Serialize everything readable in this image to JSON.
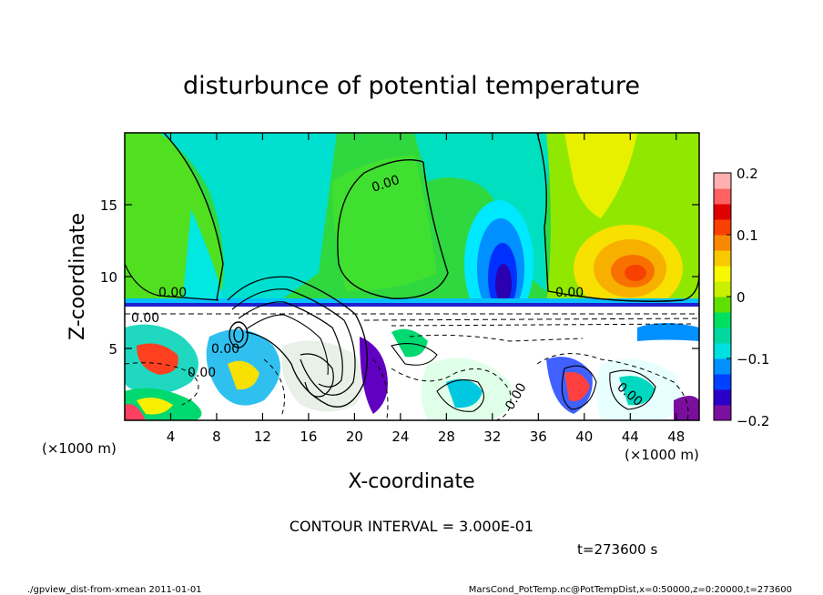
{
  "chart_data": {
    "type": "heatmap",
    "title": "disturbunce of potential temperature",
    "xlabel": "X-coordinate",
    "ylabel": "Z-coordinate",
    "x_unit_left": "(×1000 m)",
    "x_unit_right": "(×1000 m)",
    "xlim": [
      0,
      50
    ],
    "ylim": [
      0,
      20
    ],
    "x_ticks": [
      4,
      8,
      12,
      16,
      20,
      24,
      28,
      32,
      36,
      40,
      44,
      48
    ],
    "x_tick_labels": [
      "4",
      "8",
      "12",
      "16",
      "20",
      "24",
      "28",
      "32",
      "36",
      "40",
      "44",
      "48"
    ],
    "y_ticks": [
      5,
      10,
      15
    ],
    "y_tick_labels": [
      "5",
      "10",
      "15"
    ],
    "colorbar": {
      "range": [
        -0.2,
        0.2
      ],
      "ticks": [
        0.2,
        0.1,
        0,
        -0.1,
        -0.2
      ],
      "tick_labels": [
        "0.2",
        "0.1",
        "0",
        "−0.1",
        "−0.2"
      ],
      "colors": [
        "#7a0f9e",
        "#2a00c8",
        "#0040ff",
        "#0090ff",
        "#00e0e0",
        "#00d8a0",
        "#00e060",
        "#60e000",
        "#c8f000",
        "#f8f800",
        "#f8c800",
        "#f88800",
        "#f84000",
        "#e00000",
        "#ff6060",
        "#ffb0b0"
      ]
    },
    "contour_labels": [
      "0.00",
      "0.00",
      "0.00",
      "0.00",
      "0.00",
      "0.00",
      "0.00",
      "0.00"
    ],
    "contour_interval": "CONTOUR INTERVAL = 3.000E-01",
    "time_label": "t=273600 s",
    "footer_left": "./gpview_dist-from-xmean  2011-01-01",
    "footer_right": "MarsCond_PotTemp.nc@PotTempDist,x=0:50000,z=0:20000,t=273600"
  }
}
